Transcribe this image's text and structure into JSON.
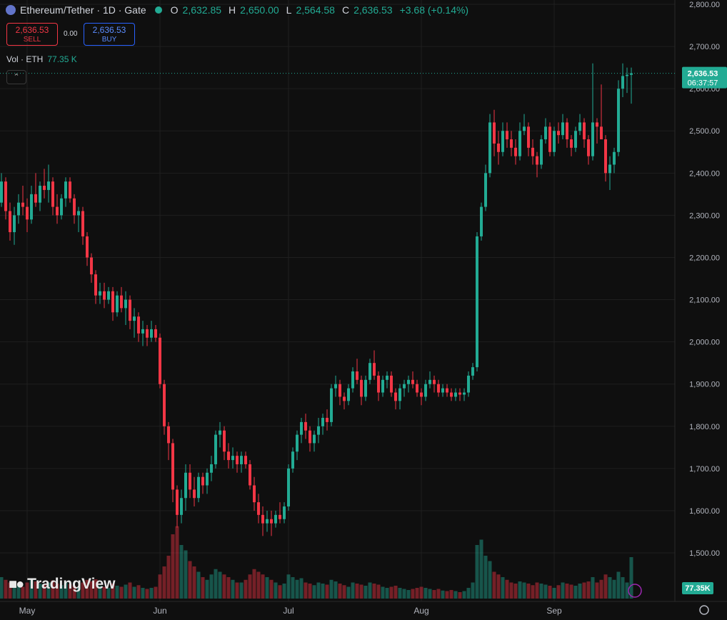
{
  "header": {
    "symbol": "Ethereum/Tether · 1D · Gate",
    "o_label": "O",
    "o": "2,632.85",
    "h_label": "H",
    "h": "2,650.00",
    "l_label": "L",
    "l": "2,564.58",
    "c_label": "C",
    "c": "2,636.53",
    "change": "+3.68 (+0.14%)",
    "sell_price": "2,636.53",
    "sell": "SELL",
    "spread": "0.00",
    "buy_price": "2,636.53",
    "buy": "BUY",
    "vol_label": "Vol · ETH",
    "vol_value": "77.35 K",
    "logo": "TradingView"
  },
  "chart_data": {
    "type": "candlestick",
    "ylim": [
      1400,
      2800
    ],
    "yticks": [
      {
        "value": 1500,
        "label": "1,500.00"
      },
      {
        "value": 1600,
        "label": "1,600.00"
      },
      {
        "value": 1700,
        "label": "1,700.00"
      },
      {
        "value": 1800,
        "label": "1,800.00"
      },
      {
        "value": 1900,
        "label": "1,900.00"
      },
      {
        "value": 2000,
        "label": "2,000.00"
      },
      {
        "value": 2100,
        "label": "2,100.00"
      },
      {
        "value": 2200,
        "label": "2,200.00"
      },
      {
        "value": 2300,
        "label": "2,300.00"
      },
      {
        "value": 2400,
        "label": "2,400.00"
      },
      {
        "value": 2500,
        "label": "2,500.00"
      },
      {
        "value": 2600,
        "label": "2,600.00"
      },
      {
        "value": 2700,
        "label": "2,700.00"
      },
      {
        "value": 2800,
        "label": "2,800.00"
      }
    ],
    "xticks": [
      {
        "value": 6,
        "label": "May"
      },
      {
        "value": 37,
        "label": "Jun"
      },
      {
        "value": 67,
        "label": "Jul"
      },
      {
        "value": 98,
        "label": "Aug"
      },
      {
        "value": 129,
        "label": "Sep"
      }
    ],
    "up_color": "#22ab94",
    "down_color": "#f23645",
    "grid": true,
    "last_price": 2636.53,
    "last_price_label": "2,636.53",
    "countdown": "06:37:57",
    "last_volume_label": "77.35K",
    "candles": [
      [
        2330,
        2400,
        2320,
        2380,
        40
      ],
      [
        2380,
        2390,
        2290,
        2310,
        35
      ],
      [
        2310,
        2330,
        2240,
        2260,
        30
      ],
      [
        2260,
        2320,
        2230,
        2300,
        28
      ],
      [
        2300,
        2350,
        2280,
        2330,
        25
      ],
      [
        2330,
        2370,
        2300,
        2320,
        22
      ],
      [
        2320,
        2340,
        2260,
        2290,
        30
      ],
      [
        2290,
        2370,
        2280,
        2350,
        35
      ],
      [
        2350,
        2400,
        2320,
        2330,
        32
      ],
      [
        2330,
        2380,
        2310,
        2370,
        28
      ],
      [
        2370,
        2410,
        2340,
        2360,
        26
      ],
      [
        2360,
        2420,
        2330,
        2380,
        30
      ],
      [
        2380,
        2390,
        2300,
        2320,
        34
      ],
      [
        2320,
        2350,
        2280,
        2300,
        28
      ],
      [
        2300,
        2350,
        2290,
        2340,
        25
      ],
      [
        2340,
        2390,
        2320,
        2380,
        30
      ],
      [
        2380,
        2390,
        2330,
        2340,
        27
      ],
      [
        2340,
        2350,
        2280,
        2300,
        24
      ],
      [
        2300,
        2320,
        2260,
        2310,
        22
      ],
      [
        2310,
        2320,
        2230,
        2250,
        30
      ],
      [
        2250,
        2260,
        2180,
        2200,
        35
      ],
      [
        2200,
        2210,
        2140,
        2160,
        32
      ],
      [
        2160,
        2170,
        2090,
        2110,
        36
      ],
      [
        2110,
        2140,
        2090,
        2120,
        24
      ],
      [
        2120,
        2140,
        2080,
        2100,
        22
      ],
      [
        2100,
        2130,
        2090,
        2120,
        20
      ],
      [
        2120,
        2130,
        2050,
        2070,
        28
      ],
      [
        2070,
        2120,
        2060,
        2110,
        24
      ],
      [
        2110,
        2130,
        2070,
        2080,
        22
      ],
      [
        2080,
        2120,
        2040,
        2100,
        26
      ],
      [
        2100,
        2110,
        2030,
        2050,
        30
      ],
      [
        2050,
        2080,
        2010,
        2060,
        22
      ],
      [
        2060,
        2070,
        2000,
        2020,
        25
      ],
      [
        2020,
        2050,
        1990,
        2030,
        20
      ],
      [
        2030,
        2040,
        1990,
        2010,
        18
      ],
      [
        2010,
        2050,
        2000,
        2030,
        20
      ],
      [
        2030,
        2040,
        2000,
        2010,
        22
      ],
      [
        2010,
        2020,
        1890,
        1900,
        45
      ],
      [
        1900,
        1910,
        1780,
        1800,
        60
      ],
      [
        1800,
        1810,
        1720,
        1760,
        80
      ],
      [
        1760,
        1770,
        1620,
        1650,
        120
      ],
      [
        1650,
        1660,
        1560,
        1590,
        135
      ],
      [
        1590,
        1650,
        1570,
        1630,
        100
      ],
      [
        1630,
        1710,
        1600,
        1690,
        90
      ],
      [
        1690,
        1710,
        1630,
        1650,
        70
      ],
      [
        1650,
        1680,
        1610,
        1630,
        60
      ],
      [
        1630,
        1690,
        1620,
        1680,
        50
      ],
      [
        1680,
        1690,
        1640,
        1660,
        40
      ],
      [
        1660,
        1700,
        1640,
        1690,
        35
      ],
      [
        1690,
        1730,
        1670,
        1710,
        45
      ],
      [
        1710,
        1790,
        1700,
        1780,
        55
      ],
      [
        1780,
        1810,
        1750,
        1790,
        50
      ],
      [
        1790,
        1800,
        1720,
        1740,
        45
      ],
      [
        1740,
        1760,
        1700,
        1720,
        40
      ],
      [
        1720,
        1750,
        1700,
        1730,
        35
      ],
      [
        1730,
        1740,
        1690,
        1710,
        30
      ],
      [
        1710,
        1740,
        1690,
        1730,
        30
      ],
      [
        1730,
        1740,
        1700,
        1710,
        35
      ],
      [
        1710,
        1720,
        1650,
        1660,
        45
      ],
      [
        1660,
        1680,
        1600,
        1620,
        55
      ],
      [
        1620,
        1640,
        1570,
        1590,
        50
      ],
      [
        1590,
        1610,
        1540,
        1570,
        45
      ],
      [
        1570,
        1600,
        1550,
        1580,
        40
      ],
      [
        1580,
        1600,
        1540,
        1570,
        35
      ],
      [
        1570,
        1600,
        1560,
        1590,
        30
      ],
      [
        1590,
        1620,
        1570,
        1580,
        25
      ],
      [
        1580,
        1620,
        1570,
        1610,
        28
      ],
      [
        1610,
        1710,
        1600,
        1700,
        45
      ],
      [
        1700,
        1750,
        1690,
        1740,
        40
      ],
      [
        1740,
        1790,
        1720,
        1780,
        35
      ],
      [
        1780,
        1820,
        1760,
        1810,
        38
      ],
      [
        1810,
        1830,
        1770,
        1790,
        30
      ],
      [
        1790,
        1800,
        1740,
        1760,
        28
      ],
      [
        1760,
        1790,
        1740,
        1780,
        25
      ],
      [
        1780,
        1820,
        1760,
        1800,
        30
      ],
      [
        1800,
        1830,
        1780,
        1820,
        28
      ],
      [
        1820,
        1840,
        1790,
        1810,
        26
      ],
      [
        1810,
        1900,
        1800,
        1890,
        35
      ],
      [
        1890,
        1920,
        1870,
        1900,
        32
      ],
      [
        1900,
        1910,
        1850,
        1870,
        28
      ],
      [
        1870,
        1880,
        1840,
        1860,
        25
      ],
      [
        1860,
        1900,
        1850,
        1890,
        22
      ],
      [
        1890,
        1940,
        1880,
        1930,
        30
      ],
      [
        1930,
        1960,
        1900,
        1910,
        28
      ],
      [
        1910,
        1920,
        1850,
        1870,
        26
      ],
      [
        1870,
        1920,
        1860,
        1910,
        24
      ],
      [
        1910,
        1960,
        1900,
        1950,
        30
      ],
      [
        1950,
        1980,
        1910,
        1920,
        28
      ],
      [
        1920,
        1930,
        1860,
        1880,
        26
      ],
      [
        1880,
        1920,
        1870,
        1910,
        22
      ],
      [
        1910,
        1930,
        1890,
        1920,
        20
      ],
      [
        1920,
        1930,
        1870,
        1880,
        22
      ],
      [
        1880,
        1890,
        1840,
        1860,
        24
      ],
      [
        1860,
        1900,
        1840,
        1890,
        20
      ],
      [
        1890,
        1910,
        1870,
        1900,
        18
      ],
      [
        1900,
        1920,
        1880,
        1910,
        16
      ],
      [
        1910,
        1930,
        1890,
        1900,
        18
      ],
      [
        1900,
        1910,
        1870,
        1880,
        20
      ],
      [
        1880,
        1890,
        1850,
        1870,
        22
      ],
      [
        1870,
        1910,
        1860,
        1900,
        20
      ],
      [
        1900,
        1930,
        1890,
        1910,
        18
      ],
      [
        1910,
        1920,
        1880,
        1900,
        16
      ],
      [
        1900,
        1910,
        1870,
        1880,
        18
      ],
      [
        1880,
        1900,
        1870,
        1890,
        15
      ],
      [
        1890,
        1900,
        1870,
        1880,
        14
      ],
      [
        1880,
        1890,
        1860,
        1870,
        16
      ],
      [
        1870,
        1890,
        1860,
        1880,
        14
      ],
      [
        1880,
        1890,
        1860,
        1875,
        12
      ],
      [
        1875,
        1890,
        1860,
        1880,
        14
      ],
      [
        1880,
        1930,
        1870,
        1920,
        20
      ],
      [
        1920,
        1950,
        1910,
        1940,
        30
      ],
      [
        1940,
        2260,
        1930,
        2250,
        100
      ],
      [
        2250,
        2330,
        2240,
        2320,
        110
      ],
      [
        2320,
        2420,
        2310,
        2400,
        80
      ],
      [
        2400,
        2540,
        2390,
        2520,
        70
      ],
      [
        2520,
        2550,
        2440,
        2470,
        50
      ],
      [
        2470,
        2500,
        2420,
        2450,
        45
      ],
      [
        2450,
        2520,
        2440,
        2500,
        40
      ],
      [
        2500,
        2520,
        2460,
        2480,
        35
      ],
      [
        2480,
        2500,
        2440,
        2460,
        30
      ],
      [
        2460,
        2480,
        2420,
        2440,
        28
      ],
      [
        2440,
        2520,
        2430,
        2500,
        32
      ],
      [
        2500,
        2540,
        2490,
        2510,
        30
      ],
      [
        2510,
        2520,
        2440,
        2460,
        28
      ],
      [
        2460,
        2480,
        2420,
        2440,
        25
      ],
      [
        2440,
        2450,
        2390,
        2420,
        30
      ],
      [
        2420,
        2490,
        2410,
        2480,
        28
      ],
      [
        2480,
        2530,
        2470,
        2510,
        26
      ],
      [
        2510,
        2520,
        2440,
        2450,
        24
      ],
      [
        2450,
        2510,
        2440,
        2500,
        20
      ],
      [
        2500,
        2520,
        2470,
        2490,
        25
      ],
      [
        2490,
        2540,
        2480,
        2520,
        30
      ],
      [
        2520,
        2530,
        2460,
        2480,
        28
      ],
      [
        2480,
        2490,
        2440,
        2460,
        26
      ],
      [
        2460,
        2510,
        2450,
        2500,
        24
      ],
      [
        2500,
        2540,
        2490,
        2520,
        28
      ],
      [
        2520,
        2530,
        2460,
        2480,
        30
      ],
      [
        2480,
        2490,
        2420,
        2440,
        32
      ],
      [
        2440,
        2660,
        2430,
        2520,
        40
      ],
      [
        2520,
        2530,
        2470,
        2510,
        30
      ],
      [
        2510,
        2610,
        2480,
        2480,
        35
      ],
      [
        2480,
        2490,
        2380,
        2400,
        45
      ],
      [
        2400,
        2440,
        2360,
        2420,
        40
      ],
      [
        2420,
        2460,
        2400,
        2450,
        35
      ],
      [
        2450,
        2620,
        2440,
        2600,
        50
      ],
      [
        2600,
        2660,
        2580,
        2630,
        40
      ],
      [
        2630,
        2650,
        2590,
        2633,
        30
      ],
      [
        2632.85,
        2650,
        2564.58,
        2636.53,
        77.35
      ]
    ]
  }
}
